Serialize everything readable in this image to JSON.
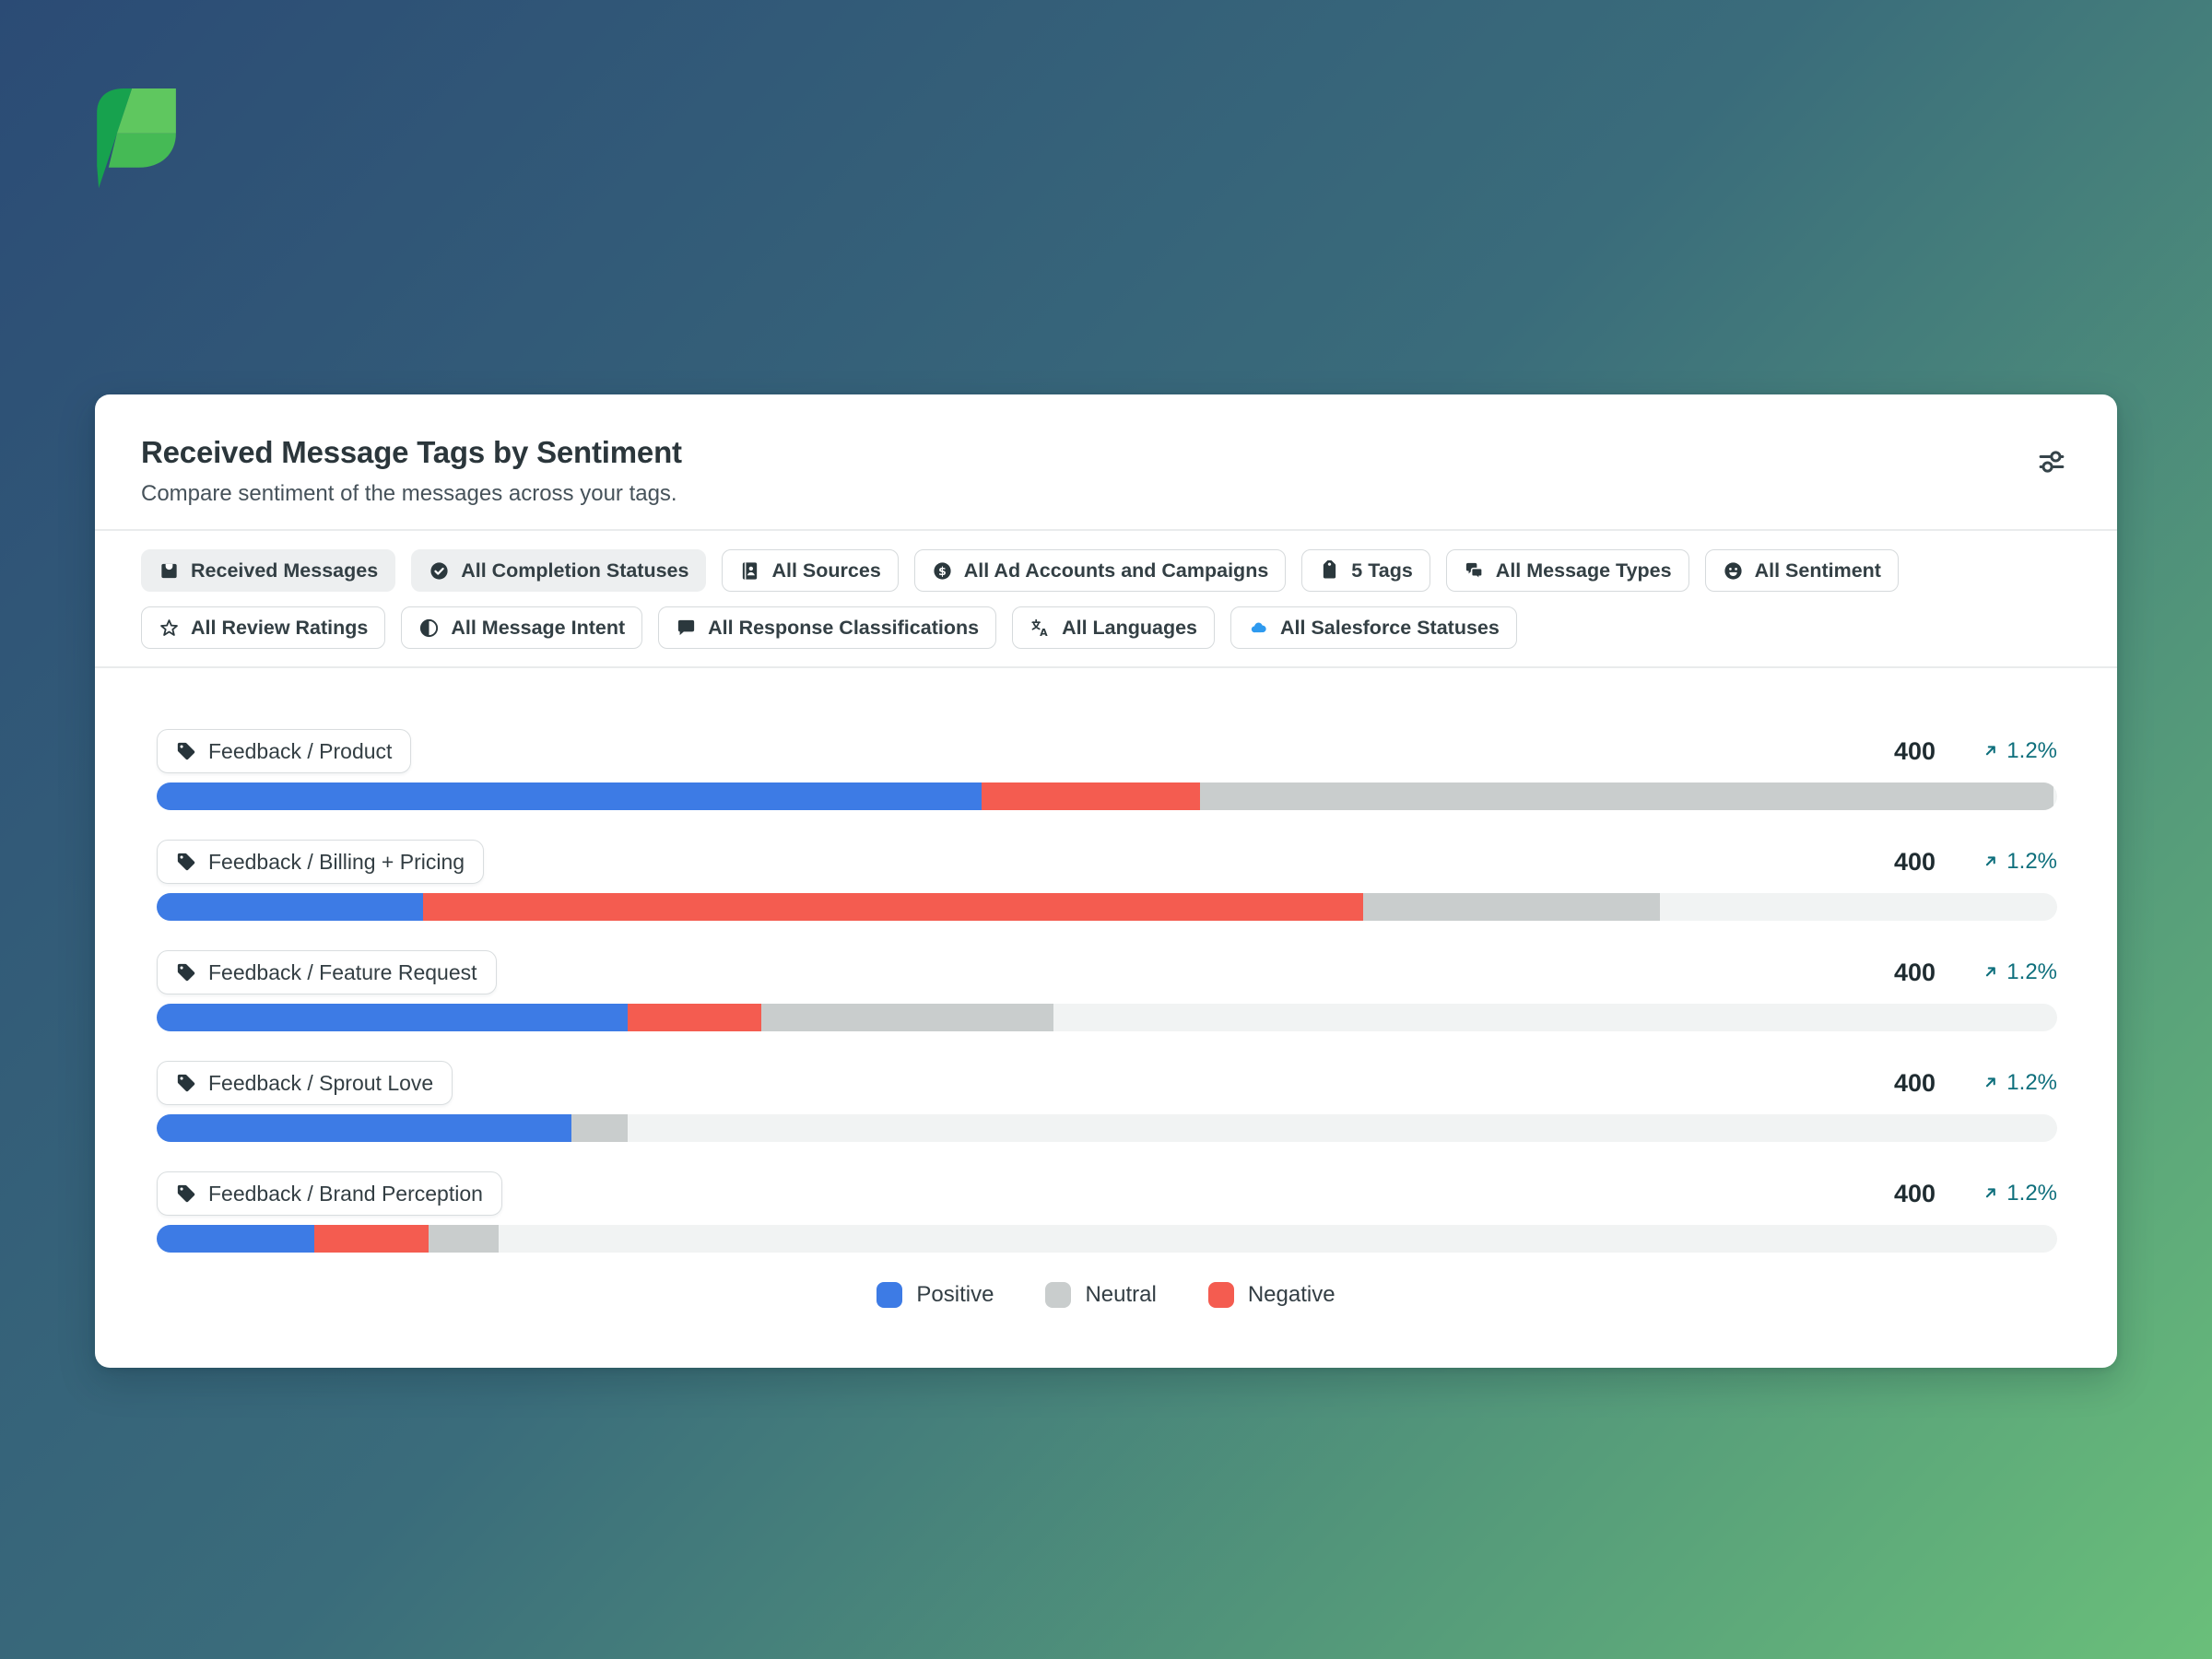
{
  "page": {
    "background_gradient": [
      "#2B4B75",
      "#3A6C7B",
      "#6ABF7A"
    ],
    "brand_logo": {
      "name": "sprout-leaf",
      "colors": {
        "dark": "#17A24E",
        "light": "#5FC75F",
        "mid": "#45BA55"
      }
    }
  },
  "header": {
    "title": "Received Message Tags by Sentiment",
    "subtitle": "Compare sentiment of the messages across your tags.",
    "settings_icon": "filter-sliders"
  },
  "filters": {
    "rows": [
      [
        {
          "label": "Received Messages",
          "icon": "inbox",
          "variant": "filled"
        },
        {
          "label": "All Completion Statuses",
          "icon": "check-circle",
          "variant": "filled"
        },
        {
          "label": "All Sources",
          "icon": "address-book",
          "variant": "outline"
        },
        {
          "label": "All Ad Accounts and Campaigns",
          "icon": "dollar-circle",
          "variant": "outline"
        },
        {
          "label": "5 Tags",
          "icon": "tag-down",
          "variant": "outline"
        },
        {
          "label": "All Message Types",
          "icon": "chat-bubbles",
          "variant": "outline"
        },
        {
          "label": "All Sentiment",
          "icon": "smiley",
          "variant": "outline"
        }
      ],
      [
        {
          "label": "All Review Ratings",
          "icon": "star",
          "variant": "outline"
        },
        {
          "label": "All Message Intent",
          "icon": "half-circle",
          "variant": "outline"
        },
        {
          "label": "All Response Classifications",
          "icon": "speech-bubble",
          "variant": "outline"
        },
        {
          "label": "All Languages",
          "icon": "translate",
          "variant": "outline"
        },
        {
          "label": "All Salesforce Statuses",
          "icon": "salesforce-cloud",
          "variant": "outline",
          "icon_color": "#2E9AEF"
        }
      ]
    ]
  },
  "chart_data": {
    "type": "bar",
    "orientation": "horizontal",
    "stacked": true,
    "title": "Received Message Tags by Sentiment",
    "categories": [
      "Feedback / Product",
      "Feedback / Billing + Pricing",
      "Feedback / Feature Request",
      "Feedback / Sprout Love",
      "Feedback / Brand Perception"
    ],
    "category_icon": "tag-label",
    "series": [
      {
        "name": "Positive",
        "color": "#3D7BE5",
        "values_pct": [
          43.4,
          14.0,
          24.8,
          21.8,
          8.3
        ]
      },
      {
        "name": "Negative",
        "color": "#F45C50",
        "values_pct": [
          11.5,
          49.5,
          7.0,
          0,
          6.0
        ]
      },
      {
        "name": "Neutral",
        "color": "#C9CDCD",
        "values_pct": [
          44.9,
          15.6,
          15.4,
          3.0,
          3.7
        ]
      }
    ],
    "track_color": "#F1F3F3",
    "totals": [
      "400",
      "400",
      "400",
      "400",
      "400"
    ],
    "changes": [
      {
        "direction": "up",
        "value": "1.2%"
      },
      {
        "direction": "up",
        "value": "1.2%"
      },
      {
        "direction": "up",
        "value": "1.2%"
      },
      {
        "direction": "up",
        "value": "1.2%"
      },
      {
        "direction": "up",
        "value": "1.2%"
      }
    ],
    "change_color": "#0E6F7C",
    "legend": [
      {
        "label": "Positive",
        "color": "#3D7BE5"
      },
      {
        "label": "Neutral",
        "color": "#C9CDCD"
      },
      {
        "label": "Negative",
        "color": "#F45C50"
      }
    ],
    "legend_position": "bottom-center",
    "grid": false
  }
}
